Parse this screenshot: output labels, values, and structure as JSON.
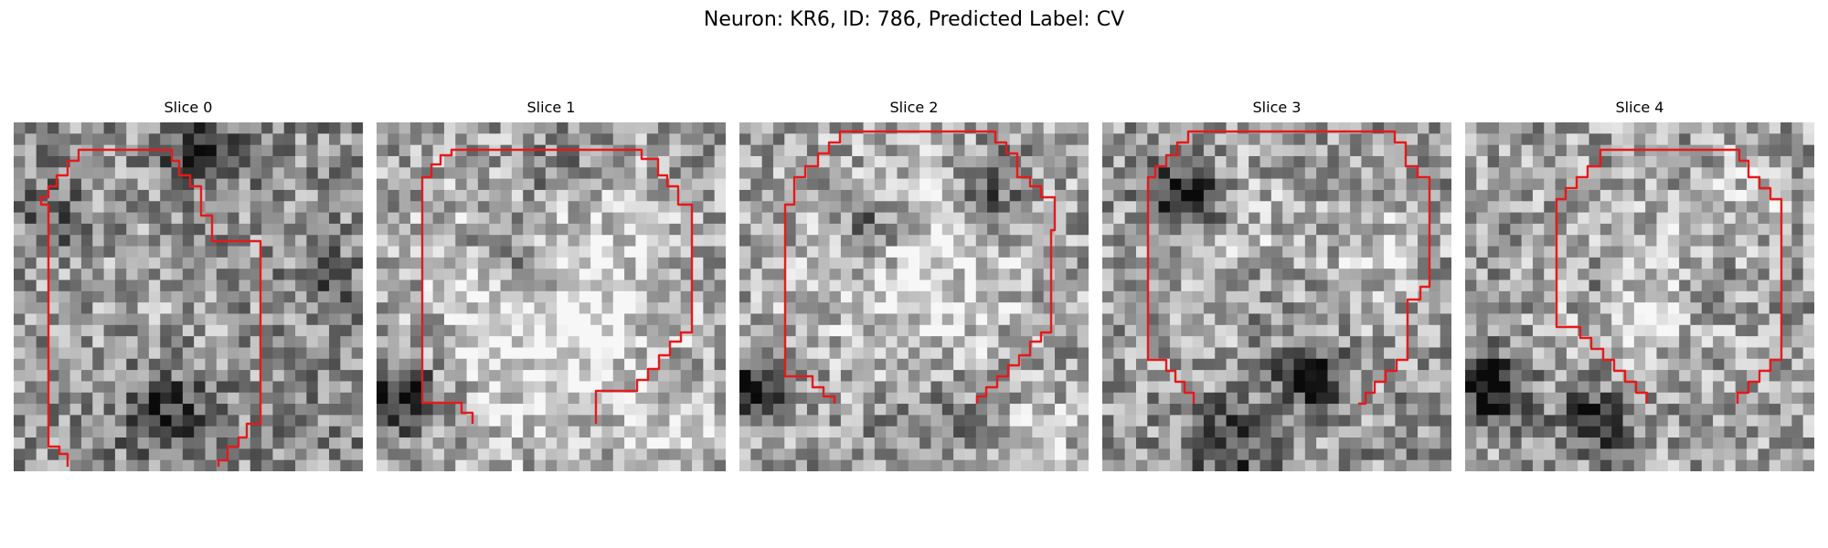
{
  "figure": {
    "title": "Neuron: KR6, ID: 786, Predicted Label: CV",
    "contour_color": "#e41a1c"
  },
  "panels": [
    {
      "title": "Slice 0"
    },
    {
      "title": "Slice 1"
    },
    {
      "title": "Slice 2"
    },
    {
      "title": "Slice 3"
    },
    {
      "title": "Slice 4"
    }
  ]
}
